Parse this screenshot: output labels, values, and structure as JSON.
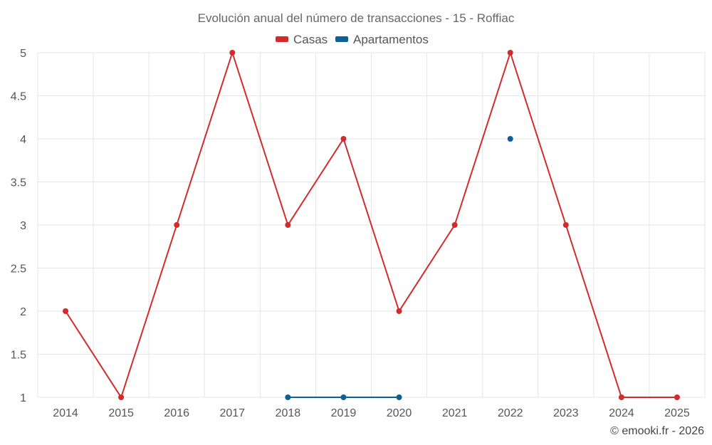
{
  "chart_data": {
    "type": "line",
    "title": "Evolución anual del número de transacciones - 15 - Roffiac",
    "categories": [
      "2014",
      "2015",
      "2016",
      "2017",
      "2018",
      "2019",
      "2020",
      "2021",
      "2022",
      "2023",
      "2024",
      "2025"
    ],
    "series": [
      {
        "name": "Casas",
        "color": "#d32b2b",
        "values": [
          2,
          1,
          3,
          5,
          3,
          4,
          2,
          3,
          5,
          3,
          1,
          1
        ]
      },
      {
        "name": "Apartamentos",
        "color": "#0b6196",
        "values": [
          null,
          null,
          null,
          null,
          1,
          1,
          1,
          null,
          4,
          null,
          null,
          null
        ]
      }
    ],
    "ylim": [
      1,
      5
    ],
    "yticks": [
      "1",
      "1.5",
      "2",
      "2.5",
      "3",
      "3.5",
      "4",
      "4.5",
      "5"
    ],
    "ytick_values": [
      1,
      1.5,
      2,
      2.5,
      3,
      3.5,
      4,
      4.5,
      5
    ],
    "grid": true,
    "legend_position": "top-center",
    "credit": "© emooki.fr - 2026"
  }
}
